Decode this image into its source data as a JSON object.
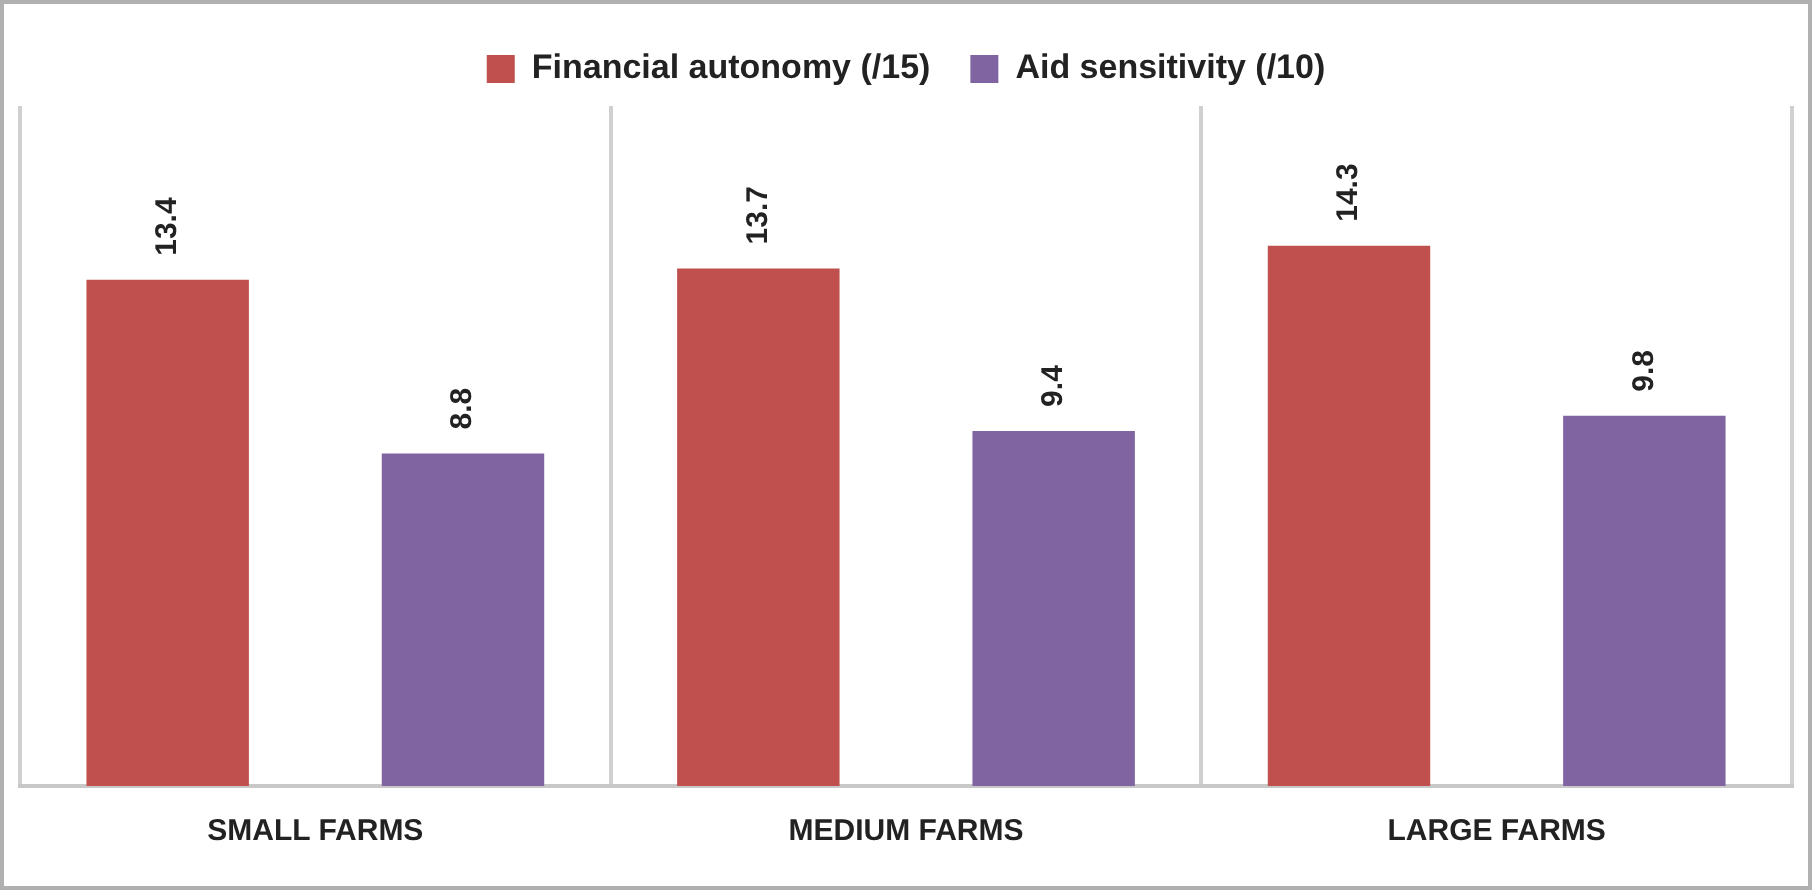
{
  "chart_data": {
    "type": "bar",
    "categories": [
      "SMALL FARMS",
      "MEDIUM FARMS",
      "LARGE FARMS"
    ],
    "series": [
      {
        "name": "Financial autonomy (/15)",
        "color": "#c0504d",
        "values": [
          13.4,
          13.7,
          14.3
        ]
      },
      {
        "name": "Aid sensitivity (/10)",
        "color": "#8064a2",
        "values": [
          8.8,
          9.4,
          9.8
        ]
      }
    ],
    "data_labels": true,
    "grid": "x",
    "legend": "top"
  }
}
